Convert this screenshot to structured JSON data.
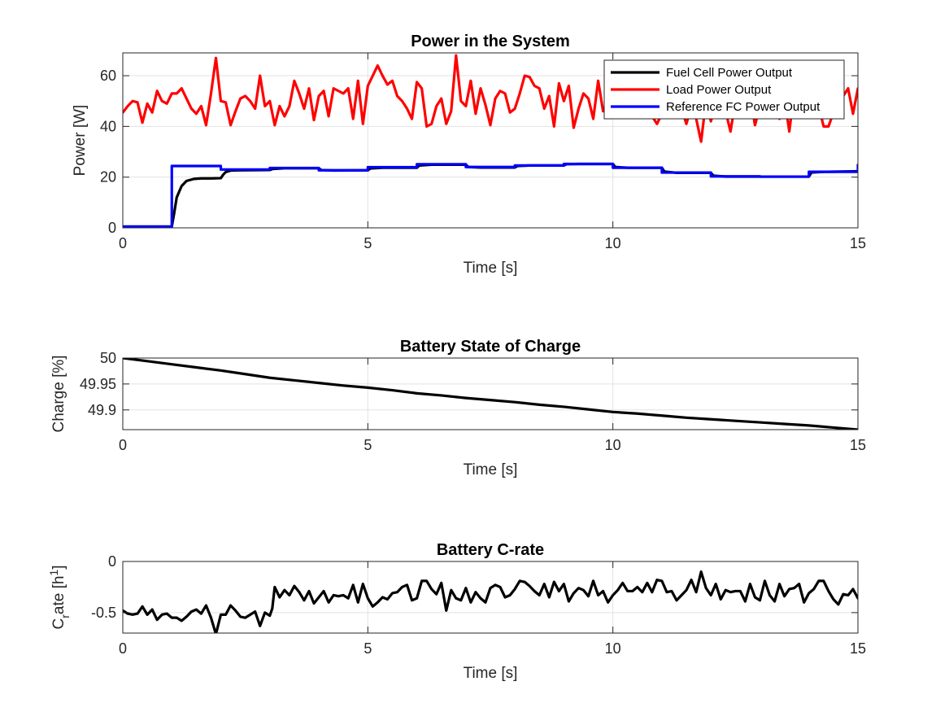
{
  "chart_data": [
    {
      "type": "line",
      "title": "Power in the System",
      "xlabel": "Time [s]",
      "ylabel": "Power [W]",
      "xlim": [
        0,
        15
      ],
      "ylim": [
        0,
        69
      ],
      "xticks": [
        0,
        5,
        10,
        15
      ],
      "yticks": [
        0,
        20,
        40,
        60
      ],
      "xtick_labels": [
        "0",
        "5",
        "10",
        "15"
      ],
      "ytick_labels": [
        "0",
        "20",
        "40",
        "60"
      ],
      "grid": true,
      "legend_position": "top-right",
      "series": [
        {
          "name": "Fuel Cell Power Output",
          "color": "#000000",
          "x": [
            0,
            1.0,
            1.05,
            1.1,
            1.2,
            1.3,
            1.45,
            1.6,
            1.8,
            2.0,
            2.05,
            2.1,
            2.2,
            2.35,
            3.0,
            3.05,
            3.3,
            4.0,
            4.05,
            4.3,
            5.0,
            5.05,
            5.3,
            6.0,
            6.05,
            6.3,
            7.0,
            7.05,
            7.3,
            8.0,
            8.05,
            8.3,
            9.0,
            9.05,
            9.3,
            10.0,
            10.05,
            10.3,
            11.0,
            11.05,
            11.3,
            12.0,
            12.05,
            12.3,
            14.0,
            14.05,
            14.3,
            15.0
          ],
          "y": [
            0.5,
            0.5,
            6,
            12,
            16.5,
            18.5,
            19.3,
            19.5,
            19.5,
            19.6,
            21,
            22,
            22.6,
            22.7,
            22.8,
            23.2,
            23.5,
            23.5,
            22.8,
            22.6,
            22.7,
            23.4,
            23.7,
            23.7,
            24.6,
            24.9,
            24.9,
            24.0,
            23.8,
            23.8,
            24.4,
            24.6,
            24.6,
            25.1,
            25.2,
            25.2,
            24.0,
            23.7,
            23.7,
            22.2,
            21.7,
            21.7,
            20.6,
            20.2,
            20.2,
            21.8,
            22.1,
            22.3
          ]
        },
        {
          "name": "Load Power Output",
          "color": "#ff0000",
          "x": [
            0,
            0.1,
            0.2,
            0.3,
            0.4,
            0.5,
            0.6,
            0.7,
            0.8,
            0.9,
            1.0,
            1.1,
            1.2,
            1.3,
            1.4,
            1.5,
            1.6,
            1.7,
            1.8,
            1.9,
            2.0,
            2.1,
            2.2,
            2.3,
            2.4,
            2.5,
            2.6,
            2.7,
            2.8,
            2.9,
            3.0,
            3.1,
            3.2,
            3.3,
            3.4,
            3.5,
            3.6,
            3.7,
            3.8,
            3.9,
            4.0,
            4.1,
            4.2,
            4.3,
            4.4,
            4.5,
            4.6,
            4.7,
            4.8,
            4.9,
            5.0,
            5.1,
            5.2,
            5.3,
            5.4,
            5.5,
            5.6,
            5.7,
            5.8,
            5.9,
            6.0,
            6.1,
            6.2,
            6.3,
            6.4,
            6.5,
            6.6,
            6.7,
            6.8,
            6.9,
            7.0,
            7.1,
            7.2,
            7.3,
            7.4,
            7.5,
            7.6,
            7.7,
            7.8,
            7.9,
            8.0,
            8.1,
            8.2,
            8.3,
            8.4,
            8.5,
            8.6,
            8.7,
            8.8,
            8.9,
            9.0,
            9.1,
            9.2,
            9.3,
            9.4,
            9.5,
            9.6,
            9.7,
            9.8,
            9.9,
            10.0,
            10.1,
            10.2,
            10.3,
            10.4,
            10.5,
            10.6,
            10.7,
            10.8,
            10.9,
            11.0,
            11.1,
            11.2,
            11.3,
            11.4,
            11.5,
            11.6,
            11.7,
            11.8,
            11.9,
            12.0,
            12.1,
            12.2,
            12.3,
            12.4,
            12.5,
            12.6,
            12.7,
            12.8,
            12.9,
            13.0,
            13.1,
            13.2,
            13.3,
            13.4,
            13.5,
            13.6,
            13.7,
            13.8,
            13.9,
            14.0,
            14.1,
            14.2,
            14.3,
            14.4,
            14.5,
            14.6,
            14.7,
            14.8,
            14.9,
            15.0
          ],
          "y": [
            45.5,
            48,
            50,
            49.5,
            41.5,
            49,
            45.5,
            54,
            50,
            49,
            53,
            53,
            55,
            51,
            47,
            45,
            48,
            40.5,
            53,
            67,
            50,
            49.5,
            40.5,
            46,
            51,
            52,
            50,
            47,
            60,
            48,
            50,
            40.5,
            48,
            44,
            48,
            58,
            53,
            47,
            55,
            42.5,
            52,
            54,
            44,
            55,
            54,
            53,
            55,
            43,
            58,
            41,
            56,
            60,
            64,
            60,
            56.5,
            58,
            52,
            50,
            47,
            43,
            57.5,
            55,
            40,
            41,
            48,
            51,
            41,
            46,
            68,
            50,
            48,
            58,
            45,
            55,
            48.5,
            40.5,
            51,
            54,
            53,
            45.5,
            47,
            53,
            60,
            59.5,
            56,
            55,
            47,
            52,
            40,
            57,
            50,
            56,
            39.5,
            47,
            53,
            51,
            43,
            58,
            46,
            50,
            62,
            55,
            58,
            50,
            48,
            48,
            52,
            45,
            44,
            41,
            45,
            60,
            59,
            57,
            47,
            41,
            48,
            43,
            34,
            50,
            42,
            49,
            56,
            46,
            38,
            50,
            47,
            49,
            52,
            40.5,
            48,
            49,
            47,
            49,
            43,
            51.5,
            38,
            54,
            46,
            44,
            57,
            50,
            48,
            40,
            40,
            45.5,
            49,
            52,
            55,
            45,
            55
          ]
        },
        {
          "name": "Reference FC Power Output",
          "color": "#0000ff",
          "x": [
            0,
            1.0,
            1.0,
            2.0,
            2.0,
            3.0,
            3.0,
            4.0,
            4.0,
            5.0,
            5.0,
            6.0,
            6.0,
            7.0,
            7.0,
            8.0,
            8.0,
            9.0,
            9.0,
            10.0,
            10.0,
            11.0,
            11.0,
            12.0,
            12.0,
            13.0,
            13.0,
            14.0,
            14.0,
            15.0,
            15.0
          ],
          "y": [
            0.5,
            0.5,
            24.4,
            24.4,
            23.0,
            23.0,
            23.6,
            23.6,
            22.7,
            22.7,
            23.9,
            23.9,
            25.1,
            25.1,
            24.0,
            24.0,
            24.6,
            24.6,
            25.2,
            25.2,
            23.7,
            23.7,
            21.8,
            21.8,
            20.3,
            20.3,
            20.2,
            20.2,
            22.1,
            22.1,
            24.8
          ]
        }
      ]
    },
    {
      "type": "line",
      "title": "Battery State of Charge",
      "xlabel": "Time [s]",
      "ylabel": "Charge [%]",
      "xlim": [
        0,
        15
      ],
      "ylim": [
        49.862,
        50.0
      ],
      "xticks": [
        0,
        5,
        10,
        15
      ],
      "yticks": [
        49.9,
        49.95,
        50.0
      ],
      "xtick_labels": [
        "0",
        "5",
        "10",
        "15"
      ],
      "ytick_labels": [
        "49.9",
        "49.95",
        "50"
      ],
      "grid": true,
      "series": [
        {
          "color": "#000000",
          "x": [
            0,
            0.5,
            1.0,
            1.5,
            2.0,
            2.5,
            3.0,
            3.5,
            4.0,
            4.5,
            5.0,
            5.5,
            6.0,
            6.5,
            7.0,
            7.5,
            8.0,
            8.5,
            9.0,
            9.5,
            10.0,
            10.5,
            11.0,
            11.5,
            12.0,
            12.5,
            13.0,
            13.5,
            14.0,
            14.5,
            15.0
          ],
          "y": [
            50.0,
            49.994,
            49.988,
            49.982,
            49.976,
            49.969,
            49.962,
            49.957,
            49.952,
            49.947,
            49.943,
            49.938,
            49.932,
            49.928,
            49.923,
            49.919,
            49.915,
            49.91,
            49.906,
            49.901,
            49.896,
            49.893,
            49.889,
            49.885,
            49.882,
            49.879,
            49.876,
            49.873,
            49.87,
            49.866,
            49.862
          ]
        }
      ]
    },
    {
      "type": "line",
      "title": "Battery C-rate",
      "xlabel": "Time [s]",
      "ylabel_parts": [
        "C",
        "r",
        "ate [h",
        "1",
        "]"
      ],
      "xlim": [
        0,
        15
      ],
      "ylim": [
        -0.7,
        0
      ],
      "xticks": [
        0,
        5,
        10,
        15
      ],
      "yticks": [
        -0.5,
        0
      ],
      "xtick_labels": [
        "0",
        "5",
        "10",
        "15"
      ],
      "ytick_labels": [
        "-0.5",
        "0"
      ],
      "grid": true,
      "series": [
        {
          "color": "#000000",
          "x": [
            0,
            0.1,
            0.2,
            0.3,
            0.4,
            0.5,
            0.6,
            0.7,
            0.8,
            0.9,
            1.0,
            1.1,
            1.2,
            1.3,
            1.4,
            1.5,
            1.6,
            1.7,
            1.8,
            1.9,
            2.0,
            2.1,
            2.2,
            2.3,
            2.4,
            2.5,
            2.6,
            2.7,
            2.8,
            2.9,
            3.0,
            3.05,
            3.1,
            3.2,
            3.3,
            3.4,
            3.5,
            3.6,
            3.7,
            3.8,
            3.9,
            4.0,
            4.1,
            4.2,
            4.3,
            4.4,
            4.5,
            4.6,
            4.7,
            4.8,
            4.9,
            5.0,
            5.1,
            5.2,
            5.3,
            5.4,
            5.5,
            5.6,
            5.7,
            5.8,
            5.9,
            6.0,
            6.1,
            6.2,
            6.3,
            6.4,
            6.5,
            6.6,
            6.7,
            6.8,
            6.9,
            7.0,
            7.1,
            7.2,
            7.3,
            7.4,
            7.5,
            7.6,
            7.7,
            7.8,
            7.9,
            8.0,
            8.1,
            8.2,
            8.3,
            8.4,
            8.5,
            8.6,
            8.7,
            8.8,
            8.9,
            9.0,
            9.1,
            9.2,
            9.3,
            9.4,
            9.5,
            9.6,
            9.7,
            9.8,
            9.9,
            10.0,
            10.1,
            10.2,
            10.3,
            10.4,
            10.5,
            10.6,
            10.7,
            10.8,
            10.9,
            11.0,
            11.1,
            11.2,
            11.3,
            11.4,
            11.5,
            11.6,
            11.7,
            11.8,
            11.9,
            12.0,
            12.1,
            12.2,
            12.3,
            12.4,
            12.5,
            12.6,
            12.7,
            12.8,
            12.9,
            13.0,
            13.1,
            13.2,
            13.3,
            13.4,
            13.5,
            13.6,
            13.7,
            13.8,
            13.9,
            14.0,
            14.1,
            14.2,
            14.3,
            14.4,
            14.5,
            14.6,
            14.7,
            14.8,
            14.9,
            15.0
          ],
          "y": [
            -0.48,
            -0.51,
            -0.52,
            -0.51,
            -0.44,
            -0.52,
            -0.47,
            -0.57,
            -0.52,
            -0.51,
            -0.55,
            -0.55,
            -0.58,
            -0.54,
            -0.49,
            -0.47,
            -0.51,
            -0.43,
            -0.55,
            -0.71,
            -0.52,
            -0.52,
            -0.43,
            -0.48,
            -0.54,
            -0.55,
            -0.52,
            -0.49,
            -0.63,
            -0.5,
            -0.53,
            -0.46,
            -0.25,
            -0.35,
            -0.28,
            -0.33,
            -0.24,
            -0.3,
            -0.38,
            -0.29,
            -0.41,
            -0.35,
            -0.29,
            -0.4,
            -0.33,
            -0.34,
            -0.33,
            -0.36,
            -0.23,
            -0.4,
            -0.22,
            -0.36,
            -0.44,
            -0.4,
            -0.35,
            -0.37,
            -0.31,
            -0.3,
            -0.25,
            -0.23,
            -0.38,
            -0.36,
            -0.19,
            -0.19,
            -0.27,
            -0.32,
            -0.21,
            -0.48,
            -0.28,
            -0.36,
            -0.38,
            -0.26,
            -0.4,
            -0.3,
            -0.36,
            -0.4,
            -0.26,
            -0.23,
            -0.25,
            -0.35,
            -0.33,
            -0.27,
            -0.19,
            -0.2,
            -0.24,
            -0.29,
            -0.33,
            -0.22,
            -0.35,
            -0.2,
            -0.29,
            -0.22,
            -0.39,
            -0.31,
            -0.26,
            -0.28,
            -0.34,
            -0.19,
            -0.33,
            -0.29,
            -0.4,
            -0.33,
            -0.28,
            -0.21,
            -0.29,
            -0.29,
            -0.25,
            -0.3,
            -0.21,
            -0.3,
            -0.18,
            -0.19,
            -0.3,
            -0.29,
            -0.38,
            -0.33,
            -0.28,
            -0.18,
            -0.3,
            -0.1,
            -0.26,
            -0.33,
            -0.22,
            -0.37,
            -0.28,
            -0.3,
            -0.29,
            -0.29,
            -0.39,
            -0.22,
            -0.35,
            -0.38,
            -0.19,
            -0.33,
            -0.39,
            -0.22,
            -0.34,
            -0.27,
            -0.26,
            -0.22,
            -0.4,
            -0.31,
            -0.27,
            -0.19,
            -0.19,
            -0.29,
            -0.37,
            -0.42,
            -0.32,
            -0.33,
            -0.27,
            -0.36
          ]
        }
      ]
    }
  ]
}
